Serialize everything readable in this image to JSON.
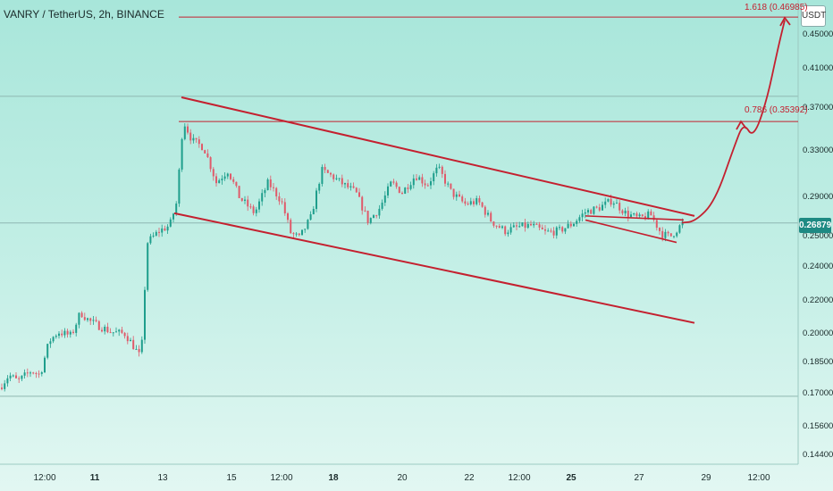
{
  "header": {
    "title": "VANRY / TetherUS, 2h, BINANCE"
  },
  "unit_button": "USDT",
  "last_price": "0.26879",
  "fib_levels": [
    {
      "label": "1.618 (0.46985)",
      "price": 0.46985
    },
    {
      "label": "0.786 (0.35392)",
      "price": 0.35392
    }
  ],
  "colors": {
    "bull": "#1e9e8c",
    "bear": "#e05a6a",
    "drawing": "#c4202f",
    "axis_text": "#1a2a2a"
  },
  "chart_data": {
    "type": "candlestick",
    "title": "VANRY / TetherUS, 2h, BINANCE",
    "y_axis": {
      "scale": "log",
      "ylim": [
        0.138,
        0.475
      ],
      "ticks": [
        "0.45000",
        "0.41000",
        "0.37000",
        "0.33000",
        "0.29000",
        "0.25000",
        "0.24000",
        "0.22000",
        "0.20000",
        "0.18500",
        "0.17000",
        "0.15600",
        "0.14400"
      ]
    },
    "x_axis": {
      "ticks": [
        "12:00",
        "11",
        "13",
        "15",
        "12:00",
        "18",
        "20",
        "22",
        "12:00",
        "25",
        "27",
        "29",
        "12:00"
      ]
    },
    "price_path": [
      {
        "t": 0,
        "p": 0.172
      },
      {
        "t": 10,
        "p": 0.178
      },
      {
        "t": 20,
        "p": 0.175
      },
      {
        "t": 35,
        "p": 0.18
      },
      {
        "t": 45,
        "p": 0.178
      },
      {
        "t": 55,
        "p": 0.195
      },
      {
        "t": 65,
        "p": 0.2
      },
      {
        "t": 80,
        "p": 0.198
      },
      {
        "t": 90,
        "p": 0.211
      },
      {
        "t": 100,
        "p": 0.206
      },
      {
        "t": 112,
        "p": 0.203
      },
      {
        "t": 125,
        "p": 0.2
      },
      {
        "t": 140,
        "p": 0.199
      },
      {
        "t": 150,
        "p": 0.192
      },
      {
        "t": 158,
        "p": 0.186
      },
      {
        "t": 165,
        "p": 0.255
      },
      {
        "t": 178,
        "p": 0.263
      },
      {
        "t": 190,
        "p": 0.267
      },
      {
        "t": 198,
        "p": 0.285
      },
      {
        "t": 205,
        "p": 0.355
      },
      {
        "t": 215,
        "p": 0.336
      },
      {
        "t": 228,
        "p": 0.33
      },
      {
        "t": 242,
        "p": 0.3
      },
      {
        "t": 255,
        "p": 0.31
      },
      {
        "t": 268,
        "p": 0.288
      },
      {
        "t": 285,
        "p": 0.276
      },
      {
        "t": 300,
        "p": 0.3
      },
      {
        "t": 315,
        "p": 0.285
      },
      {
        "t": 325,
        "p": 0.262
      },
      {
        "t": 335,
        "p": 0.258
      },
      {
        "t": 348,
        "p": 0.273
      },
      {
        "t": 360,
        "p": 0.31
      },
      {
        "t": 372,
        "p": 0.305
      },
      {
        "t": 385,
        "p": 0.298
      },
      {
        "t": 398,
        "p": 0.292
      },
      {
        "t": 412,
        "p": 0.27
      },
      {
        "t": 425,
        "p": 0.28
      },
      {
        "t": 438,
        "p": 0.3
      },
      {
        "t": 450,
        "p": 0.292
      },
      {
        "t": 465,
        "p": 0.306
      },
      {
        "t": 478,
        "p": 0.298
      },
      {
        "t": 490,
        "p": 0.312
      },
      {
        "t": 505,
        "p": 0.292
      },
      {
        "t": 520,
        "p": 0.283
      },
      {
        "t": 535,
        "p": 0.285
      },
      {
        "t": 550,
        "p": 0.27
      },
      {
        "t": 565,
        "p": 0.263
      },
      {
        "t": 580,
        "p": 0.266
      },
      {
        "t": 595,
        "p": 0.267
      },
      {
        "t": 610,
        "p": 0.262
      },
      {
        "t": 625,
        "p": 0.263
      },
      {
        "t": 640,
        "p": 0.268
      },
      {
        "t": 655,
        "p": 0.277
      },
      {
        "t": 670,
        "p": 0.28
      },
      {
        "t": 685,
        "p": 0.286
      },
      {
        "t": 700,
        "p": 0.276
      },
      {
        "t": 715,
        "p": 0.272
      },
      {
        "t": 728,
        "p": 0.275
      },
      {
        "t": 740,
        "p": 0.261
      },
      {
        "t": 750,
        "p": 0.259
      },
      {
        "t": 764,
        "p": 0.2688
      }
    ],
    "drawings": {
      "channel_upper": [
        {
          "t": 203,
          "p": 0.378
        },
        {
          "t": 777,
          "p": 0.274
        }
      ],
      "channel_lower": [
        {
          "t": 195,
          "p": 0.276
        },
        {
          "t": 777,
          "p": 0.205
        }
      ],
      "flag_upper": [
        {
          "t": 655,
          "p": 0.274
        },
        {
          "t": 765,
          "p": 0.271
        }
      ],
      "flag_lower": [
        {
          "t": 655,
          "p": 0.271
        },
        {
          "t": 757,
          "p": 0.255
        }
      ],
      "projection": [
        {
          "t": 763,
          "p": 0.269
        },
        {
          "t": 778,
          "p": 0.27
        },
        {
          "t": 800,
          "p": 0.285
        },
        {
          "t": 822,
          "p": 0.332
        },
        {
          "t": 832,
          "p": 0.353
        },
        {
          "t": 843,
          "p": 0.338
        },
        {
          "t": 858,
          "p": 0.375
        },
        {
          "t": 870,
          "p": 0.43
        },
        {
          "t": 878,
          "p": 0.466
        }
      ],
      "horizontal_lines": [
        0.379,
        0.2688,
        0.168
      ]
    }
  }
}
